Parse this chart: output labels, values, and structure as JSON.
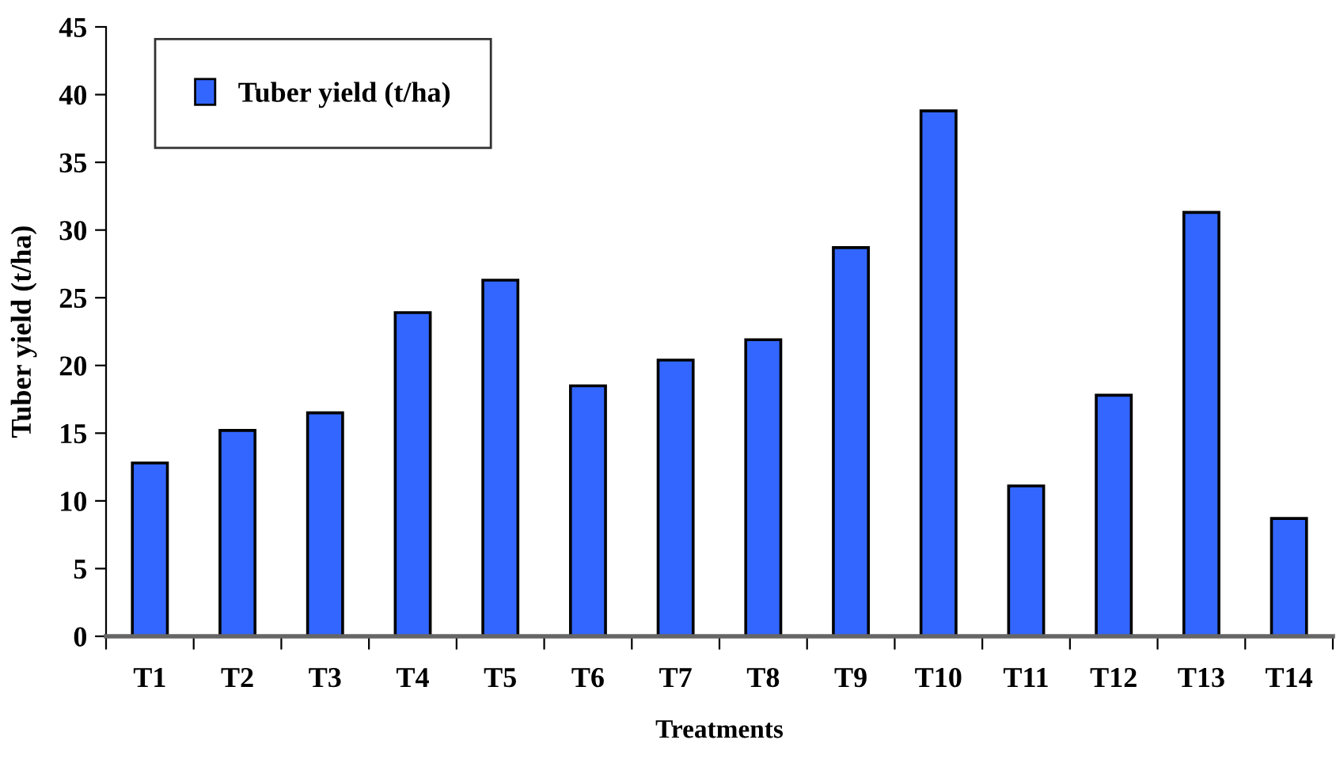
{
  "chart_data": {
    "type": "bar",
    "xlabel": "Treatments",
    "ylabel": "Tuber yield (t/ha)",
    "categories": [
      "T1",
      "T2",
      "T3",
      "T4",
      "T5",
      "T6",
      "T7",
      "T8",
      "T9",
      "T10",
      "T11",
      "T12",
      "T13",
      "T14"
    ],
    "series": [
      {
        "name": "Tuber yield (t/ha)",
        "color": "#3366ff",
        "values": [
          12.8,
          15.2,
          16.5,
          23.9,
          26.3,
          18.5,
          20.4,
          21.9,
          28.7,
          38.8,
          11.1,
          17.8,
          31.3,
          8.7
        ]
      }
    ],
    "ylim": [
      0,
      45
    ],
    "yticks": [
      0,
      5,
      10,
      15,
      20,
      25,
      30,
      35,
      40,
      45
    ],
    "grid": false,
    "legend": "top left"
  }
}
